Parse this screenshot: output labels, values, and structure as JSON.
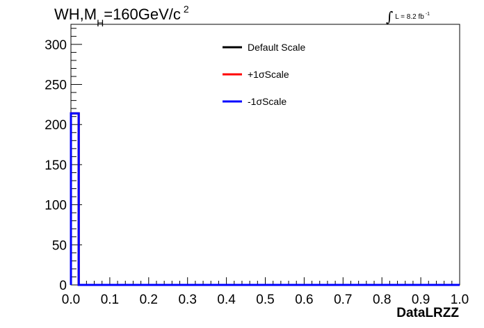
{
  "title": {
    "base": "WH,M",
    "subscript": "H",
    "rest": "=160GeV/c",
    "superscript": "2"
  },
  "lumi_label": {
    "integral_symbol": "∫",
    "text": "L = 8.2 fb",
    "superscript": "-1"
  },
  "chart_data": {
    "type": "line",
    "style": "histogram-step",
    "xlabel": "DataLRZZ",
    "ylabel": "",
    "xlim": [
      0.0,
      1.0
    ],
    "ylim": [
      0,
      325
    ],
    "x_ticks": [
      0.0,
      0.1,
      0.2,
      0.3,
      0.4,
      0.5,
      0.6,
      0.7,
      0.8,
      0.9,
      1.0
    ],
    "x_tick_labels": [
      "0.0",
      "0.1",
      "0.2",
      "0.3",
      "0.4",
      "0.5",
      "0.6",
      "0.7",
      "0.8",
      "0.9",
      "1.0"
    ],
    "y_ticks": [
      0,
      50,
      100,
      150,
      200,
      250,
      300
    ],
    "y_tick_labels": [
      "0",
      "50",
      "100",
      "150",
      "200",
      "250",
      "300"
    ],
    "grid": false,
    "legend_position": "top-center",
    "bin_edges": [
      0.0,
      0.02,
      1.0
    ],
    "series": [
      {
        "name": "Default Scale",
        "color": "#000000",
        "values": [
          214,
          0
        ]
      },
      {
        "name": "+1σScale",
        "color": "#ff0000",
        "values": [
          214,
          0
        ]
      },
      {
        "name": "-1σScale",
        "color": "#0000ff",
        "values": [
          214,
          0
        ]
      }
    ]
  }
}
